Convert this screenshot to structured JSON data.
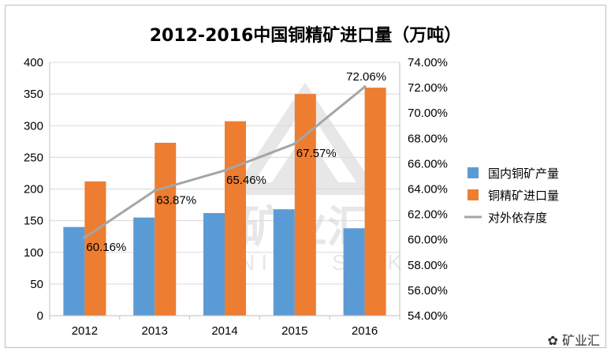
{
  "chart_data": {
    "type": "bar",
    "title": "2012-2016中国铜精矿进口量（万吨）",
    "categories": [
      "2012",
      "2013",
      "2014",
      "2015",
      "2016"
    ],
    "series": [
      {
        "name": "国内铜矿产量",
        "kind": "bar",
        "axis": "left",
        "color": "#5b9bd5",
        "values": [
          140,
          155,
          162,
          168,
          138
        ]
      },
      {
        "name": "铜精矿进口量",
        "kind": "bar",
        "axis": "left",
        "color": "#ed7d31",
        "values": [
          212,
          273,
          307,
          350,
          360
        ]
      },
      {
        "name": "对外依存度",
        "kind": "line",
        "axis": "right",
        "color": "#a5a5a5",
        "values": [
          60.16,
          63.87,
          65.46,
          67.57,
          72.06
        ],
        "labels": [
          "60.16%",
          "63.87%",
          "65.46%",
          "67.57%",
          "72.06%"
        ]
      }
    ],
    "ylim": [
      0,
      400
    ],
    "yticks": [
      "0",
      "50",
      "100",
      "150",
      "200",
      "250",
      "300",
      "350",
      "400"
    ],
    "y2lim": [
      54,
      74
    ],
    "y2ticks": [
      "54.00%",
      "56.00%",
      "58.00%",
      "60.00%",
      "62.00%",
      "64.00%",
      "66.00%",
      "68.00%",
      "70.00%",
      "72.00%",
      "74.00%"
    ],
    "grid": true,
    "legend": "right"
  },
  "watermark": {
    "logo_text": "矿业汇",
    "logo_subtext": "MINING SINK",
    "corner_label": "矿业汇"
  }
}
